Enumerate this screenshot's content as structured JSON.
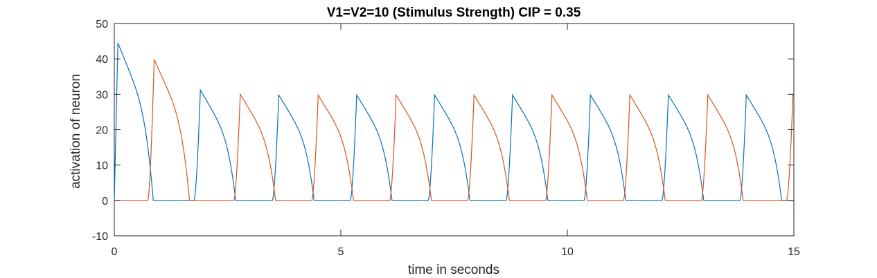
{
  "chart_data": {
    "type": "line",
    "title": "V1=V2=10 (Stimulus Strength) CIP = 0.35",
    "xlabel": "time in seconds",
    "ylabel": "activation of neuron",
    "xlim": [
      0,
      15
    ],
    "ylim": [
      -10,
      50
    ],
    "xticks": [
      0,
      5,
      10,
      15
    ],
    "yticks": [
      -10,
      0,
      10,
      20,
      30,
      40,
      50
    ],
    "xtick_labels": [
      "0",
      "5",
      "10",
      "15"
    ],
    "ytick_labels": [
      "-10",
      "0",
      "10",
      "20",
      "30",
      "40",
      "50"
    ],
    "grid": false,
    "legend": "none",
    "series": [
      {
        "color": "#0072BD",
        "peaks": [
          {
            "t": 0.08,
            "v": 44.5
          },
          {
            "t": 1.9,
            "v": 31.2
          },
          {
            "t": 3.63,
            "v": 29.8
          },
          {
            "t": 5.35,
            "v": 29.8
          },
          {
            "t": 7.07,
            "v": 29.8
          },
          {
            "t": 8.79,
            "v": 29.8
          },
          {
            "t": 10.51,
            "v": 29.8
          },
          {
            "t": 12.23,
            "v": 29.8
          },
          {
            "t": 13.95,
            "v": 29.8
          }
        ],
        "plateau_end": 0.0
      },
      {
        "color": "#D95319",
        "peaks": [
          {
            "t": 0.88,
            "v": 39.8
          },
          {
            "t": 2.78,
            "v": 30.0
          },
          {
            "t": 4.5,
            "v": 29.8
          },
          {
            "t": 6.22,
            "v": 29.8
          },
          {
            "t": 7.94,
            "v": 29.8
          },
          {
            "t": 9.66,
            "v": 29.8
          },
          {
            "t": 11.38,
            "v": 29.8
          },
          {
            "t": 13.1,
            "v": 29.8
          },
          {
            "t": 14.98,
            "v": 29.8
          }
        ],
        "plateau_end": 0.0
      }
    ]
  }
}
